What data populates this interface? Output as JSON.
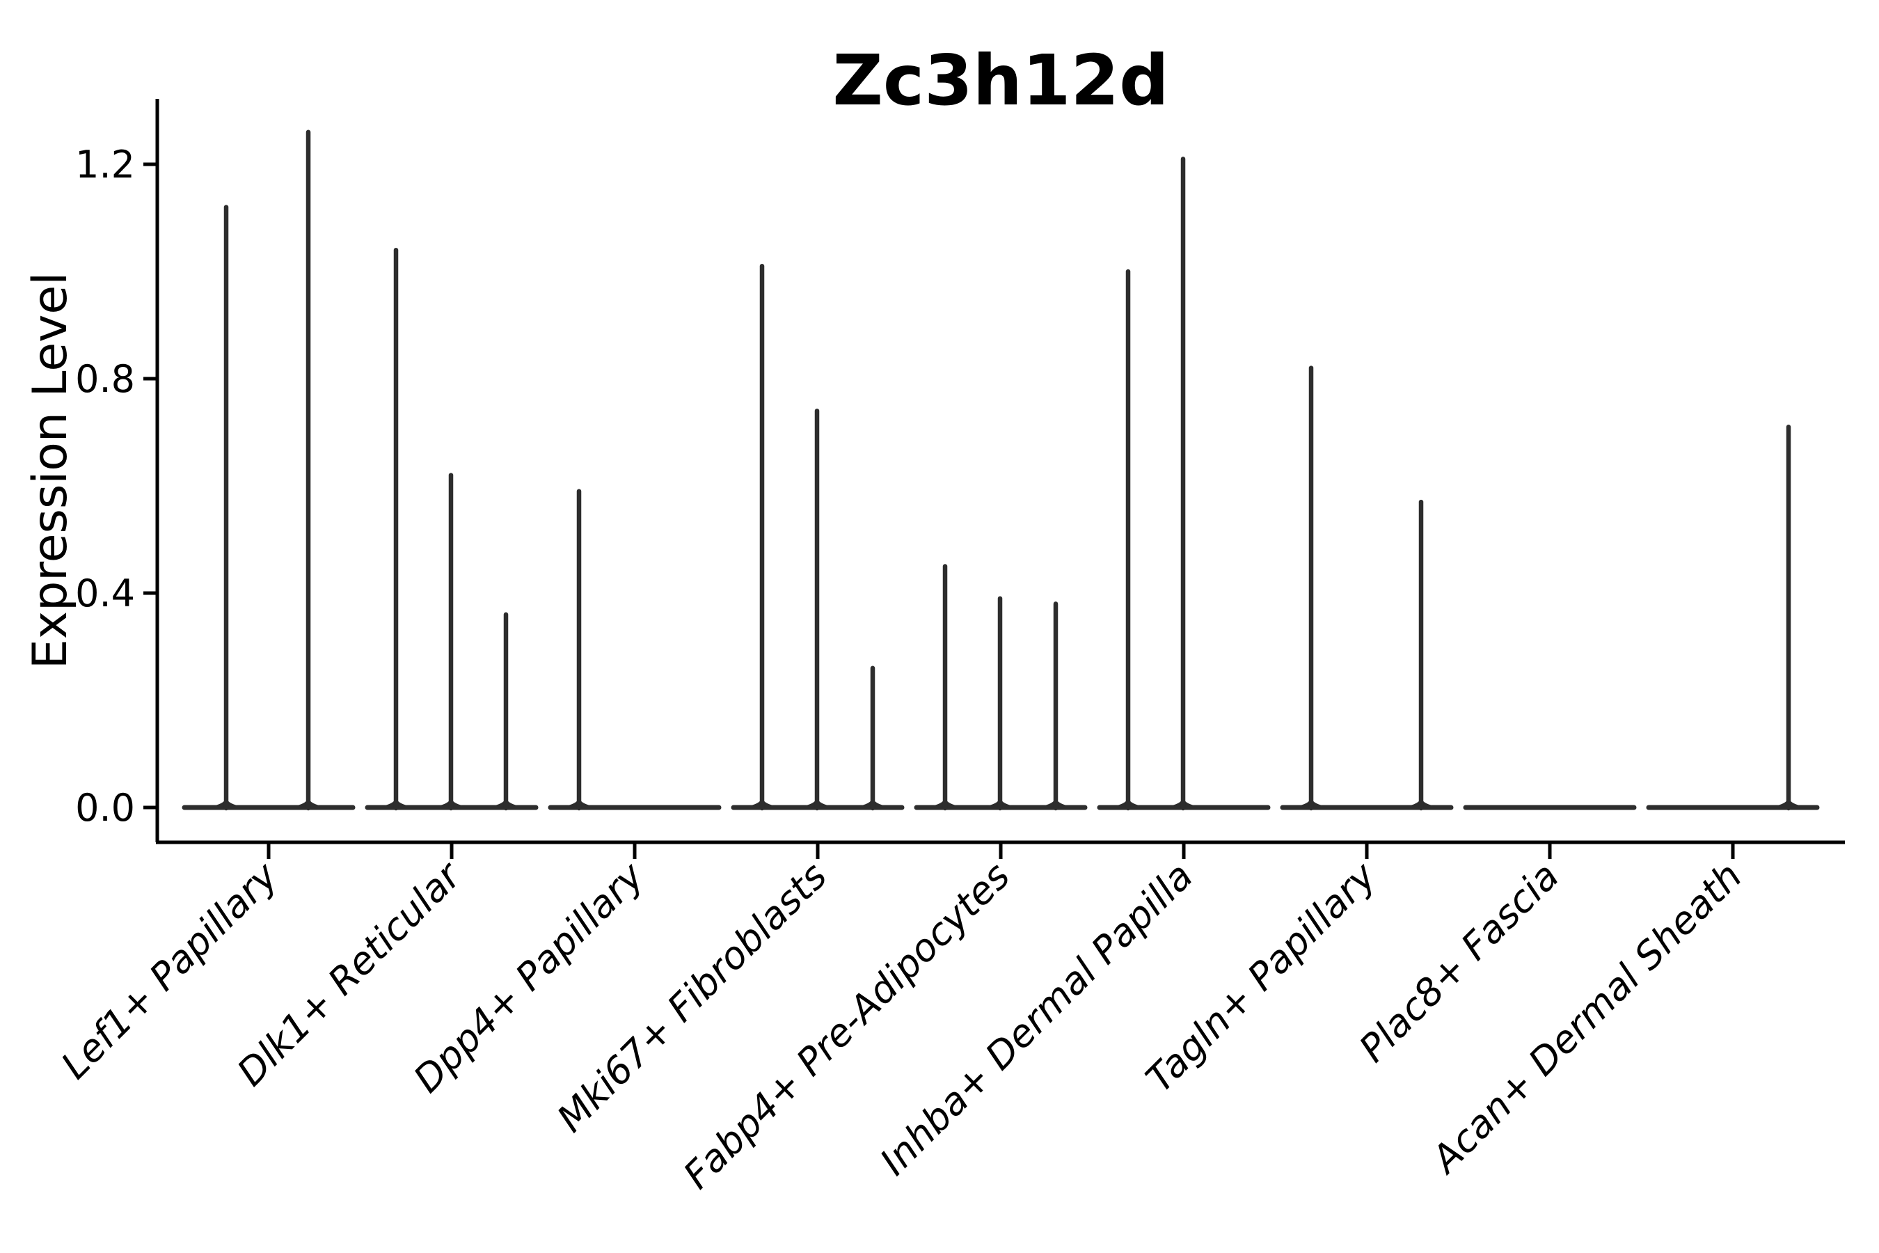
{
  "chart_data": {
    "type": "violin",
    "title": "Zc3h12d",
    "xlabel": "",
    "ylabel": "Expression Level",
    "ylim": [
      -0.065,
      1.32
    ],
    "grid": false,
    "legend": "none",
    "ink_color": "#2d2d2d",
    "axis_color": "#000000",
    "yticks": [
      0.0,
      0.4,
      0.8,
      1.2
    ],
    "ytick_labels": [
      "0.0",
      "0.4",
      "0.8",
      "1.2"
    ],
    "categories": [
      "Lef1+ Papillary",
      "Dlk1+ Reticular",
      "Dpp4+ Papillary",
      "Mki67+ Fibroblasts",
      "Fabp4+ Pre-Adipocytes",
      "Inhba+ Dermal Papilla",
      "Tagln+ Papillary",
      "Plac8+ Fascia",
      "Acan+ Dermal Sheath"
    ],
    "groups": [
      {
        "label": "Lef1+ Papillary",
        "spikes": [
          {
            "dx": -61,
            "v": 1.12
          },
          {
            "dx": 57,
            "v": 1.26
          }
        ]
      },
      {
        "label": "Dlk1+ Reticular",
        "spikes": [
          {
            "dx": -80,
            "v": 1.04
          },
          {
            "dx": -1,
            "v": 0.62
          },
          {
            "dx": 78,
            "v": 0.36
          }
        ]
      },
      {
        "label": "Dpp4+ Papillary",
        "spikes": [
          {
            "dx": -80,
            "v": 0.59
          }
        ]
      },
      {
        "label": "Mki67+ Fibroblasts",
        "spikes": [
          {
            "dx": -80,
            "v": 1.01
          },
          {
            "dx": -1,
            "v": 0.74
          },
          {
            "dx": 79,
            "v": 0.26
          }
        ]
      },
      {
        "label": "Fabp4+ Pre-Adipocytes",
        "spikes": [
          {
            "dx": -80,
            "v": 0.45
          },
          {
            "dx": -1,
            "v": 0.39
          },
          {
            "dx": 79,
            "v": 0.38
          }
        ]
      },
      {
        "label": "Inhba+ Dermal Papilla",
        "spikes": [
          {
            "dx": -80,
            "v": 1.0
          },
          {
            "dx": -1,
            "v": 1.21
          }
        ]
      },
      {
        "label": "Tagln+ Papillary",
        "spikes": [
          {
            "dx": -80,
            "v": 0.82
          },
          {
            "dx": 78,
            "v": 0.57
          }
        ]
      },
      {
        "label": "Plac8+ Fascia",
        "spikes": []
      },
      {
        "label": "Acan+ Dermal Sheath",
        "spikes": [
          {
            "dx": 80,
            "v": 0.71
          }
        ]
      }
    ]
  }
}
